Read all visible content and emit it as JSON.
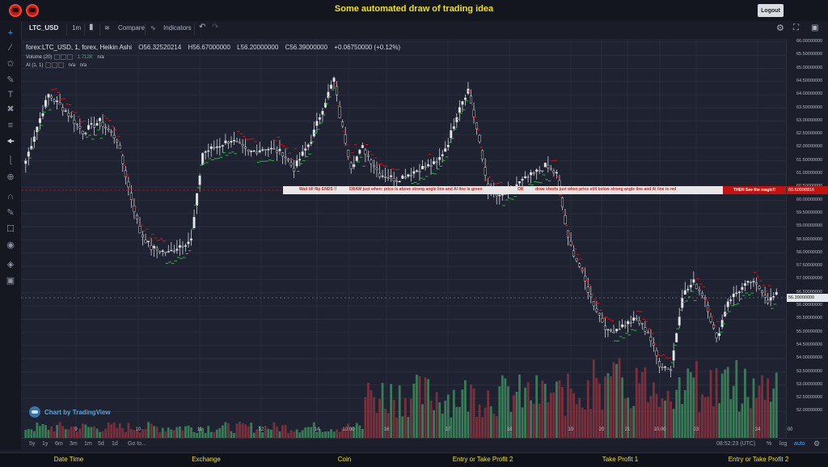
{
  "header": {
    "title": "Some automated draw of trading idea",
    "logout_label": "Logout"
  },
  "toolbar": {
    "symbol": "LTC_USD",
    "interval": "1m",
    "compare_label": "Compare",
    "indicators_label": "Indicators"
  },
  "legend": {
    "series": "forex:LTC_USD, 1, forex, Heikin Ashi",
    "open": "O56.32520214",
    "high": "H56.67000000",
    "low": "L56.20000000",
    "close": "C56.39000000",
    "change": "+0.06750000 (+0.12%)",
    "volume_label": "Volume (20)",
    "volume_value": "1.712K",
    "volume_na": "n/a",
    "ai_label": "AI (1, 1)",
    "ai_na1": "n/a",
    "ai_na2": "n/a"
  },
  "annotation": {
    "text1": "Wait till flip ENDS !!",
    "text2": "DRAW just when: price is above strong angle line and AI line is green",
    "text3": "OR",
    "text4": "draw shorts just when price still below strong angle line and AI line is red",
    "magic": "THEN See the magic!!",
    "price_tag": "60.60998816",
    "last_price": "56.39000000"
  },
  "price_axis": {
    "labels": [
      "66.00000000",
      "65.50000000",
      "65.00000000",
      "64.50000000",
      "64.00000000",
      "63.50000000",
      "63.00000000",
      "62.50000000",
      "62.00000000",
      "61.50000000",
      "61.00000000",
      "60.50000000",
      "60.00000000",
      "59.50000000",
      "59.00000000",
      "58.50000000",
      "58.00000000",
      "57.50000000",
      "57.00000000",
      "56.50000000",
      "56.00000000",
      "55.50000000",
      "55.00000000",
      "54.50000000",
      "54.00000000",
      "53.50000000",
      "53.00000000",
      "52.50000000",
      "52.00000000"
    ]
  },
  "time_axis": {
    "labels": [
      "9",
      "10",
      "11",
      "12",
      "14",
      "10:00",
      "16",
      "17",
      "18",
      "19",
      "20",
      "21",
      "10:00",
      "23",
      "24",
      "00"
    ]
  },
  "bottom_bar": {
    "ranges": [
      "5y",
      "1y",
      "6m",
      "3m",
      "1m",
      "5d",
      "1d"
    ],
    "goto": "Go to...",
    "time": "08:52:23 (UTC)",
    "percent": "%",
    "log": "log",
    "auto": "auto"
  },
  "watermark": "Chart by TradingView",
  "footer": {
    "items": [
      "Date Time",
      "Exchange",
      "Coin",
      "Entry or Take Profit 2",
      "Take Profit 1",
      "Entry or Take Profit 2"
    ]
  },
  "colors": {
    "up": "#e8e8e8",
    "down": "#111111",
    "ai_green": "#22b03a",
    "ai_red": "#c8141c",
    "vol_up": "#3e8a5e",
    "vol_down": "#8a3340",
    "accent": "#f0e020"
  },
  "chart_data": {
    "type": "candlestick",
    "style": "Heikin Ashi",
    "ylim": [
      52,
      66
    ],
    "x_ticks": [
      "9",
      "10",
      "11",
      "12",
      "14",
      "10:00",
      "16",
      "17",
      "18",
      "19",
      "20",
      "21",
      "10:00",
      "23",
      "24",
      "00"
    ],
    "close_path": [
      {
        "i": 0,
        "v": 61.5
      },
      {
        "i": 4,
        "v": 62.8
      },
      {
        "i": 8,
        "v": 64.0
      },
      {
        "i": 14,
        "v": 63.4
      },
      {
        "i": 20,
        "v": 62.6
      },
      {
        "i": 26,
        "v": 63.0
      },
      {
        "i": 32,
        "v": 62.3
      },
      {
        "i": 36,
        "v": 60.5
      },
      {
        "i": 40,
        "v": 58.8
      },
      {
        "i": 44,
        "v": 58.2
      },
      {
        "i": 50,
        "v": 58.0
      },
      {
        "i": 54,
        "v": 58.3
      },
      {
        "i": 58,
        "v": 58.5
      },
      {
        "i": 62,
        "v": 61.8
      },
      {
        "i": 66,
        "v": 62.0
      },
      {
        "i": 72,
        "v": 62.3
      },
      {
        "i": 78,
        "v": 61.8
      },
      {
        "i": 84,
        "v": 62.0
      },
      {
        "i": 90,
        "v": 61.8
      },
      {
        "i": 94,
        "v": 61.2
      },
      {
        "i": 100,
        "v": 62.3
      },
      {
        "i": 104,
        "v": 63.5
      },
      {
        "i": 108,
        "v": 64.6
      },
      {
        "i": 110,
        "v": 63.2
      },
      {
        "i": 114,
        "v": 61.3
      },
      {
        "i": 118,
        "v": 62.0
      },
      {
        "i": 124,
        "v": 61.0
      },
      {
        "i": 130,
        "v": 60.8
      },
      {
        "i": 138,
        "v": 61.2
      },
      {
        "i": 144,
        "v": 61.4
      },
      {
        "i": 148,
        "v": 62.2
      },
      {
        "i": 152,
        "v": 63.6
      },
      {
        "i": 155,
        "v": 64.2
      },
      {
        "i": 158,
        "v": 62.7
      },
      {
        "i": 162,
        "v": 60.4
      },
      {
        "i": 166,
        "v": 60.1
      },
      {
        "i": 172,
        "v": 60.6
      },
      {
        "i": 178,
        "v": 61.0
      },
      {
        "i": 182,
        "v": 61.3
      },
      {
        "i": 186,
        "v": 61.0
      },
      {
        "i": 190,
        "v": 58.5
      },
      {
        "i": 194,
        "v": 57.5
      },
      {
        "i": 198,
        "v": 56.3
      },
      {
        "i": 204,
        "v": 55.0
      },
      {
        "i": 210,
        "v": 55.3
      },
      {
        "i": 214,
        "v": 55.5
      },
      {
        "i": 218,
        "v": 55.0
      },
      {
        "i": 222,
        "v": 53.8
      },
      {
        "i": 226,
        "v": 53.6
      },
      {
        "i": 230,
        "v": 56.4
      },
      {
        "i": 234,
        "v": 56.9
      },
      {
        "i": 238,
        "v": 56.3
      },
      {
        "i": 242,
        "v": 54.7
      },
      {
        "i": 246,
        "v": 56.2
      },
      {
        "i": 250,
        "v": 56.6
      },
      {
        "i": 254,
        "v": 56.9
      },
      {
        "i": 258,
        "v": 56.6
      },
      {
        "i": 260,
        "v": 56.2
      },
      {
        "i": 263,
        "v": 56.4
      }
    ]
  }
}
